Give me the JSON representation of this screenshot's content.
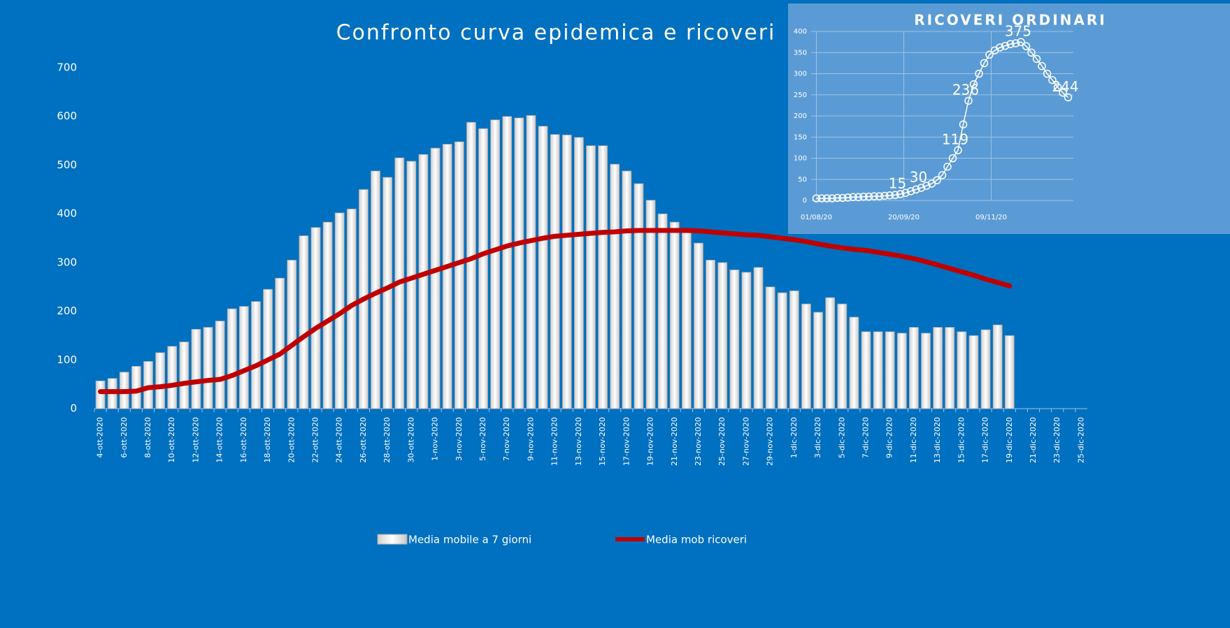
{
  "chart_data": [
    {
      "type": "bar",
      "title": "Confronto curva epidemica e ricoveri",
      "categories": [
        "4-ott-2020",
        null,
        "6-ott-2020",
        null,
        "8-ott-2020",
        null,
        "10-ott-2020",
        null,
        "12-ott-2020",
        null,
        "14-ott-2020",
        null,
        "16-ott-2020",
        null,
        "18-ott-2020",
        null,
        "20-ott-2020",
        null,
        "22-ott-2020",
        null,
        "24-ott-2020",
        null,
        "26-ott-2020",
        null,
        "28-ott-2020",
        null,
        "30-ott-2020",
        null,
        "1-nov-2020",
        null,
        "3-nov-2020",
        null,
        "5-nov-2020",
        null,
        "7-nov-2020",
        null,
        "9-nov-2020",
        null,
        "11-nov-2020",
        null,
        "13-nov-2020",
        null,
        "15-nov-2020",
        null,
        "17-nov-2020",
        null,
        "19-nov-2020",
        null,
        "21-nov-2020",
        null,
        "23-nov-2020",
        null,
        "25-nov-2020",
        null,
        "27-nov-2020",
        null,
        "29-nov-2020",
        null,
        "1-dic-2020",
        null,
        "3-dic-2020",
        null,
        "5-dic-2020",
        null,
        "7-dic-2020",
        null,
        "9-dic-2020",
        null,
        "11-dic-2020",
        null,
        "13-dic-2020",
        null,
        "15-dic-2020",
        null,
        "17-dic-2020",
        null,
        "19-dic-2020",
        null,
        "21-dic-2020",
        null,
        "23-dic-2020",
        null,
        "25-dic-2020"
      ],
      "series": [
        {
          "name": "Media mobile a 7 giorni",
          "type": "bar",
          "color": "#eeeeee",
          "values": [
            57,
            62,
            75,
            87,
            97,
            115,
            128,
            137,
            163,
            167,
            180,
            205,
            210,
            220,
            245,
            268,
            305,
            355,
            372,
            383,
            402,
            410,
            450,
            488,
            475,
            515,
            508,
            522,
            535,
            543,
            548,
            588,
            575,
            593,
            600,
            597,
            602,
            580,
            563,
            562,
            557,
            540,
            540,
            502,
            488,
            462,
            428,
            400,
            383,
            362,
            340,
            305,
            300,
            285,
            280,
            290,
            250,
            238,
            242,
            215,
            198,
            228,
            215,
            188,
            158,
            158,
            158,
            155,
            167,
            155,
            167,
            167,
            158,
            150,
            162,
            172,
            150,
            null,
            null,
            null,
            null,
            null,
            null
          ]
        },
        {
          "name": "Media mob ricoveri",
          "type": "line",
          "color": "#c00000",
          "values": [
            35,
            35,
            35,
            36,
            43,
            45,
            48,
            52,
            55,
            58,
            60,
            68,
            78,
            88,
            100,
            112,
            130,
            148,
            165,
            180,
            195,
            212,
            225,
            237,
            248,
            260,
            268,
            276,
            284,
            292,
            300,
            308,
            318,
            326,
            334,
            340,
            345,
            350,
            354,
            356,
            358,
            360,
            362,
            363,
            365,
            366,
            366,
            366,
            366,
            366,
            365,
            363,
            361,
            359,
            357,
            356,
            353,
            350,
            347,
            343,
            338,
            334,
            330,
            327,
            325,
            321,
            317,
            313,
            308,
            302,
            295,
            288,
            281,
            274,
            266,
            259,
            252,
            null,
            null,
            null,
            null,
            null,
            null
          ]
        }
      ],
      "ylim": [
        0,
        700
      ],
      "yticks": [
        0,
        100,
        200,
        300,
        400,
        500,
        600,
        700
      ],
      "grid": false
    },
    {
      "type": "line",
      "title": "RICOVERI ORDINARI",
      "x": [
        0,
        3,
        6,
        9,
        12,
        15,
        18,
        21,
        24,
        27,
        30,
        33,
        36,
        39,
        42,
        45,
        48,
        51,
        54,
        57,
        60,
        63,
        66,
        69,
        72,
        75,
        78,
        81,
        84,
        87,
        90,
        93,
        96,
        99,
        102,
        105,
        108,
        111,
        114,
        117,
        120,
        123,
        126,
        129,
        132,
        135,
        138,
        141,
        144
      ],
      "series": [
        {
          "color": "#ffffff",
          "values": [
            5,
            5,
            5,
            5,
            6,
            6,
            7,
            8,
            8,
            9,
            9,
            10,
            10,
            11,
            12,
            13,
            15,
            18,
            22,
            26,
            30,
            35,
            40,
            48,
            60,
            80,
            100,
            119,
            180,
            236,
            275,
            300,
            325,
            345,
            355,
            362,
            366,
            370,
            372,
            375,
            365,
            350,
            335,
            318,
            300,
            285,
            268,
            255,
            244
          ],
          "value_labels": [
            null,
            null,
            null,
            null,
            null,
            null,
            null,
            null,
            null,
            null,
            null,
            null,
            null,
            null,
            null,
            null,
            "15",
            null,
            null,
            null,
            "30",
            null,
            null,
            null,
            null,
            null,
            null,
            "119",
            null,
            "236",
            null,
            null,
            null,
            null,
            null,
            null,
            null,
            null,
            null,
            "375",
            null,
            null,
            null,
            null,
            null,
            null,
            null,
            null,
            "244"
          ]
        }
      ],
      "xlim": [
        -3,
        147
      ],
      "xticks": [
        {
          "value": 0,
          "label": "01/08/20"
        },
        {
          "value": 50,
          "label": "20/09/20"
        },
        {
          "value": 100,
          "label": "09/11/20"
        }
      ],
      "ylim": [
        0,
        400
      ],
      "yticks": [
        0,
        50,
        100,
        150,
        200,
        250,
        300,
        350,
        400
      ],
      "grid": true
    }
  ]
}
